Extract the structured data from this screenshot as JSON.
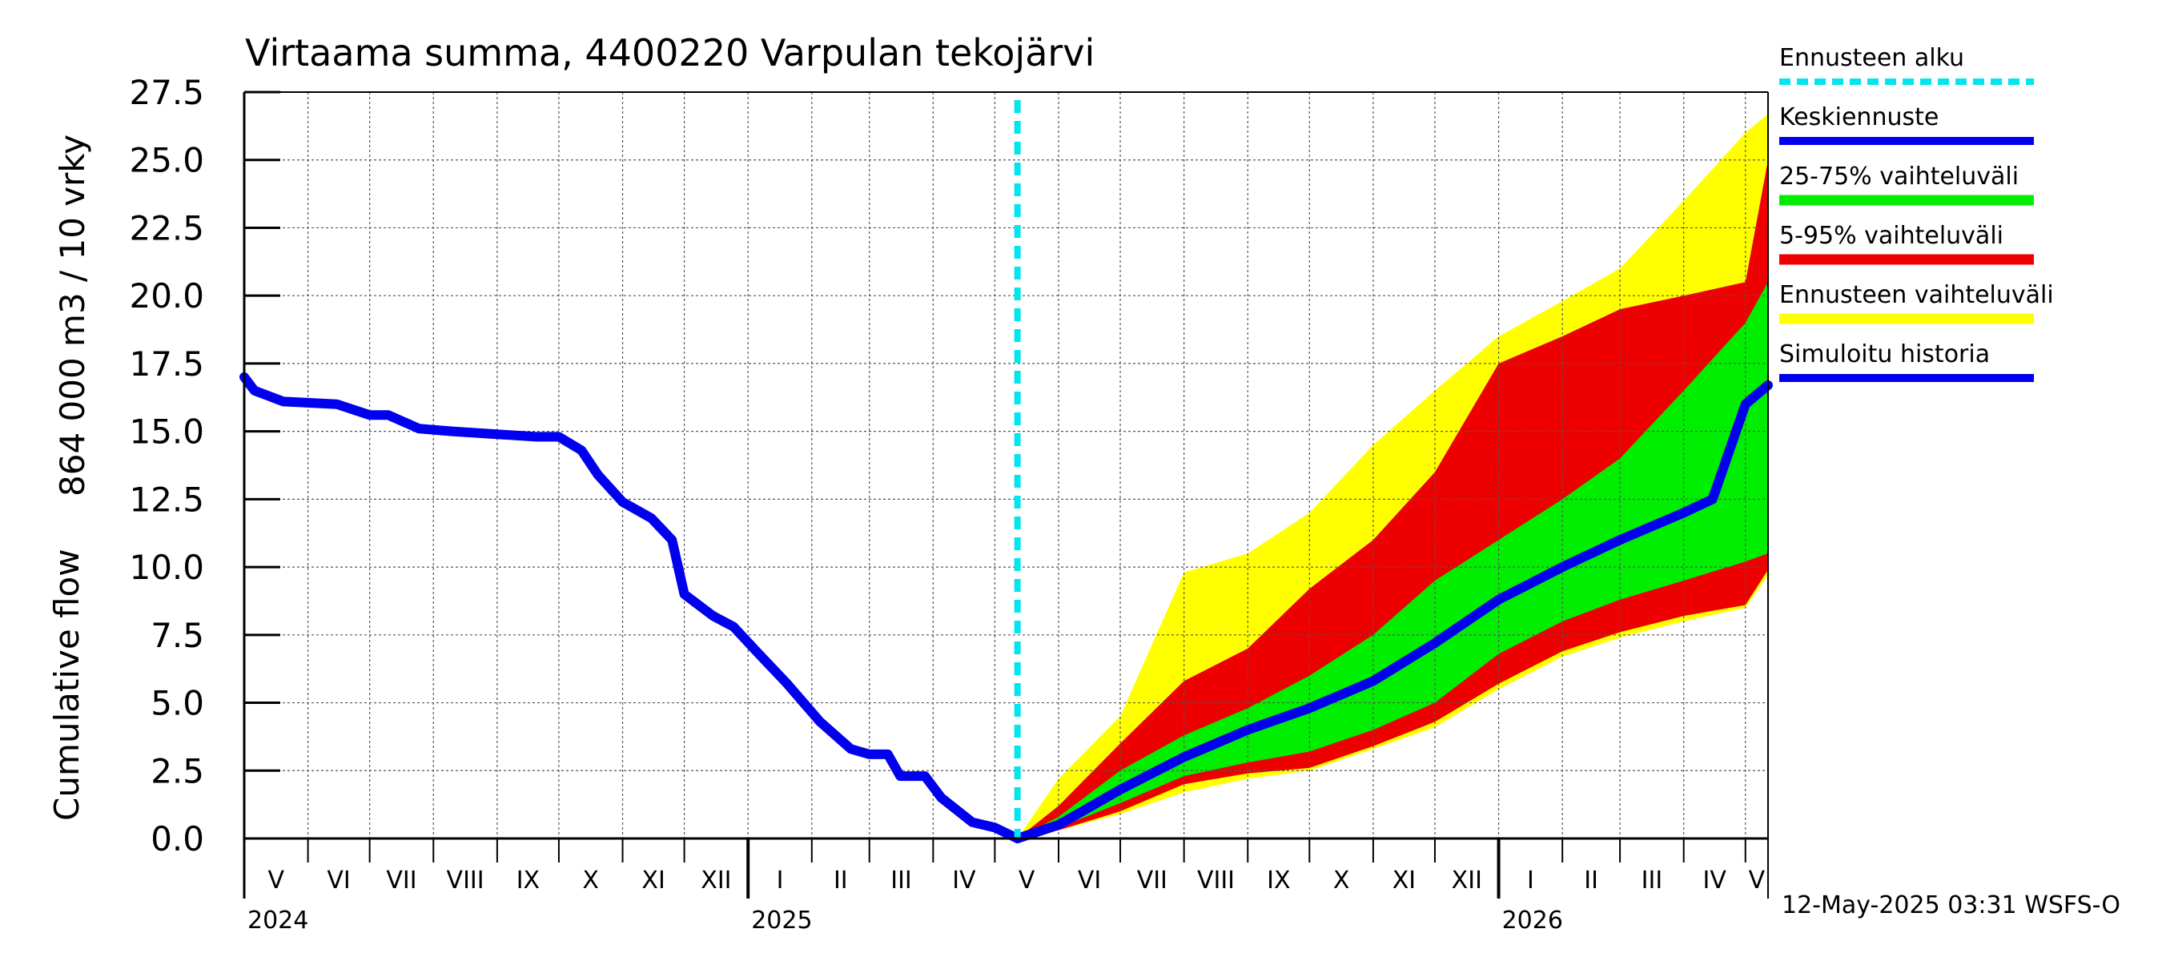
{
  "chart_data": {
    "type": "area",
    "title": "Virtaama summa, 4400220 Varpulan tekojärvi",
    "ylabel_line1": "864 000 m3 / 10 vrky",
    "ylabel_line2": "Cumulative flow",
    "ylim": [
      0,
      27.5
    ],
    "yticks": [
      "0.0",
      "2.5",
      "5.0",
      "7.5",
      "10.0",
      "12.5",
      "15.0",
      "17.5",
      "20.0",
      "22.5",
      "25.0",
      "27.5"
    ],
    "x_range": [
      "2024-05-01",
      "2026-05-12"
    ],
    "grid": true,
    "legend_position": "right",
    "month_labels": [
      {
        "label": "V",
        "start": "2024-05-01"
      },
      {
        "label": "VI",
        "start": "2024-06-01"
      },
      {
        "label": "VII",
        "start": "2024-07-01"
      },
      {
        "label": "VIII",
        "start": "2024-08-01"
      },
      {
        "label": "IX",
        "start": "2024-09-01"
      },
      {
        "label": "X",
        "start": "2024-10-01"
      },
      {
        "label": "XI",
        "start": "2024-11-01"
      },
      {
        "label": "XII",
        "start": "2024-12-01"
      },
      {
        "label": "I",
        "start": "2025-01-01"
      },
      {
        "label": "II",
        "start": "2025-02-01"
      },
      {
        "label": "III",
        "start": "2025-03-01"
      },
      {
        "label": "IV",
        "start": "2025-04-01"
      },
      {
        "label": "V",
        "start": "2025-05-01"
      },
      {
        "label": "VI",
        "start": "2025-06-01"
      },
      {
        "label": "VII",
        "start": "2025-07-01"
      },
      {
        "label": "VIII",
        "start": "2025-08-01"
      },
      {
        "label": "IX",
        "start": "2025-09-01"
      },
      {
        "label": "X",
        "start": "2025-10-01"
      },
      {
        "label": "XI",
        "start": "2025-11-01"
      },
      {
        "label": "XII",
        "start": "2025-12-01"
      },
      {
        "label": "I",
        "start": "2026-01-01"
      },
      {
        "label": "II",
        "start": "2026-02-01"
      },
      {
        "label": "III",
        "start": "2026-03-01"
      },
      {
        "label": "IV",
        "start": "2026-04-01"
      },
      {
        "label": "V",
        "start": "2026-05-01"
      }
    ],
    "year_labels": [
      {
        "label": "2024",
        "date": "2024-05-01"
      },
      {
        "label": "2025",
        "date": "2025-01-01"
      },
      {
        "label": "2026",
        "date": "2026-01-01"
      }
    ],
    "forecast_start": "2025-05-12",
    "legend": [
      {
        "label": "Ennusteen alku",
        "color": "#00e5ee",
        "style": "dashed"
      },
      {
        "label": "Keskiennuste",
        "color": "#0000ee",
        "style": "line"
      },
      {
        "label": "25-75% vaihteluväli",
        "color": "#00ee00",
        "style": "band"
      },
      {
        "label": "5-95% vaihteluväli",
        "color": "#ee0000",
        "style": "band"
      },
      {
        "label": "Ennusteen vaihteluväli",
        "color": "#ffff00",
        "style": "band"
      },
      {
        "label": "Simuloitu historia",
        "color": "#0000ee",
        "style": "line"
      }
    ],
    "footer": "12-May-2025 03:31 WSFS-O",
    "series": {
      "history": {
        "x": [
          "2024-05-01",
          "2024-05-06",
          "2024-05-20",
          "2024-06-15",
          "2024-07-01",
          "2024-07-10",
          "2024-07-25",
          "2024-08-10",
          "2024-09-20",
          "2024-10-01",
          "2024-10-12",
          "2024-10-20",
          "2024-11-01",
          "2024-11-15",
          "2024-11-25",
          "2024-12-01",
          "2024-12-15",
          "2024-12-25",
          "2025-01-05",
          "2025-01-20",
          "2025-02-05",
          "2025-02-20",
          "2025-03-01",
          "2025-03-10",
          "2025-03-16",
          "2025-03-28",
          "2025-04-05",
          "2025-04-20",
          "2025-05-01",
          "2025-05-12"
        ],
        "y": [
          17.0,
          16.5,
          16.1,
          16.0,
          15.6,
          15.6,
          15.1,
          15.0,
          14.8,
          14.8,
          14.3,
          13.4,
          12.4,
          11.8,
          11.0,
          9.0,
          8.2,
          7.8,
          6.9,
          5.7,
          4.3,
          3.3,
          3.1,
          3.1,
          2.3,
          2.3,
          1.5,
          0.6,
          0.4,
          0.0
        ]
      },
      "median": {
        "x": [
          "2025-05-12",
          "2025-06-01",
          "2025-07-01",
          "2025-08-01",
          "2025-09-01",
          "2025-10-01",
          "2025-11-01",
          "2025-12-01",
          "2026-01-01",
          "2026-02-01",
          "2026-03-01",
          "2026-04-01",
          "2026-04-15",
          "2026-05-01",
          "2026-05-12"
        ],
        "y": [
          0.0,
          0.5,
          1.8,
          3.0,
          4.0,
          4.8,
          5.8,
          7.2,
          8.8,
          10.0,
          11.0,
          12.0,
          12.5,
          16.0,
          16.7
        ]
      },
      "p25": {
        "x": [
          "2025-05-12",
          "2025-06-01",
          "2025-07-01",
          "2025-08-01",
          "2025-09-01",
          "2025-10-01",
          "2025-11-01",
          "2025-12-01",
          "2026-01-01",
          "2026-02-01",
          "2026-03-01",
          "2026-04-01",
          "2026-05-01",
          "2026-05-12"
        ],
        "y": [
          0.0,
          0.4,
          1.3,
          2.3,
          2.8,
          3.2,
          4.0,
          5.0,
          6.8,
          8.0,
          8.8,
          9.5,
          10.2,
          10.5
        ]
      },
      "p75": {
        "x": [
          "2025-05-12",
          "2025-06-01",
          "2025-07-01",
          "2025-08-01",
          "2025-09-01",
          "2025-10-01",
          "2025-11-01",
          "2025-12-01",
          "2026-01-01",
          "2026-02-01",
          "2026-03-01",
          "2026-04-01",
          "2026-05-01",
          "2026-05-12"
        ],
        "y": [
          0.0,
          0.8,
          2.5,
          3.8,
          4.8,
          6.0,
          7.5,
          9.5,
          11.0,
          12.5,
          14.0,
          16.5,
          19.0,
          20.5
        ]
      },
      "p05": {
        "x": [
          "2025-05-12",
          "2025-06-01",
          "2025-07-01",
          "2025-08-01",
          "2025-09-01",
          "2025-10-01",
          "2025-11-01",
          "2025-12-01",
          "2026-01-01",
          "2026-02-01",
          "2026-03-01",
          "2026-04-01",
          "2026-05-01",
          "2026-05-12"
        ],
        "y": [
          0.0,
          0.3,
          1.0,
          2.0,
          2.4,
          2.6,
          3.4,
          4.3,
          5.7,
          6.9,
          7.6,
          8.2,
          8.6,
          9.9
        ]
      },
      "p95": {
        "x": [
          "2025-05-12",
          "2025-06-01",
          "2025-07-01",
          "2025-08-01",
          "2025-09-01",
          "2025-10-01",
          "2025-11-01",
          "2025-12-01",
          "2026-01-01",
          "2026-02-01",
          "2026-03-01",
          "2026-04-01",
          "2026-05-01",
          "2026-05-12"
        ],
        "y": [
          0.0,
          1.2,
          3.5,
          5.8,
          7.0,
          9.2,
          11.0,
          13.5,
          17.5,
          18.5,
          19.5,
          20.0,
          20.5,
          25.0
        ]
      },
      "min": {
        "x": [
          "2025-05-12",
          "2025-06-01",
          "2025-07-01",
          "2025-08-01",
          "2025-09-01",
          "2025-10-01",
          "2025-11-01",
          "2025-12-01",
          "2026-01-01",
          "2026-02-01",
          "2026-03-01",
          "2026-04-01",
          "2026-05-01",
          "2026-05-12"
        ],
        "y": [
          0.0,
          0.3,
          0.9,
          1.7,
          2.2,
          2.5,
          3.3,
          4.1,
          5.5,
          6.7,
          7.4,
          8.0,
          8.5,
          9.7
        ]
      },
      "max": {
        "x": [
          "2025-05-12",
          "2025-06-01",
          "2025-07-01",
          "2025-08-01",
          "2025-09-01",
          "2025-10-01",
          "2025-11-01",
          "2025-12-01",
          "2026-01-01",
          "2026-02-01",
          "2026-03-01",
          "2026-04-01",
          "2026-05-01",
          "2026-05-12"
        ],
        "y": [
          0.0,
          2.2,
          4.5,
          9.8,
          10.5,
          12.0,
          14.5,
          16.5,
          18.5,
          19.8,
          21.0,
          23.5,
          26.0,
          26.7
        ]
      }
    }
  }
}
